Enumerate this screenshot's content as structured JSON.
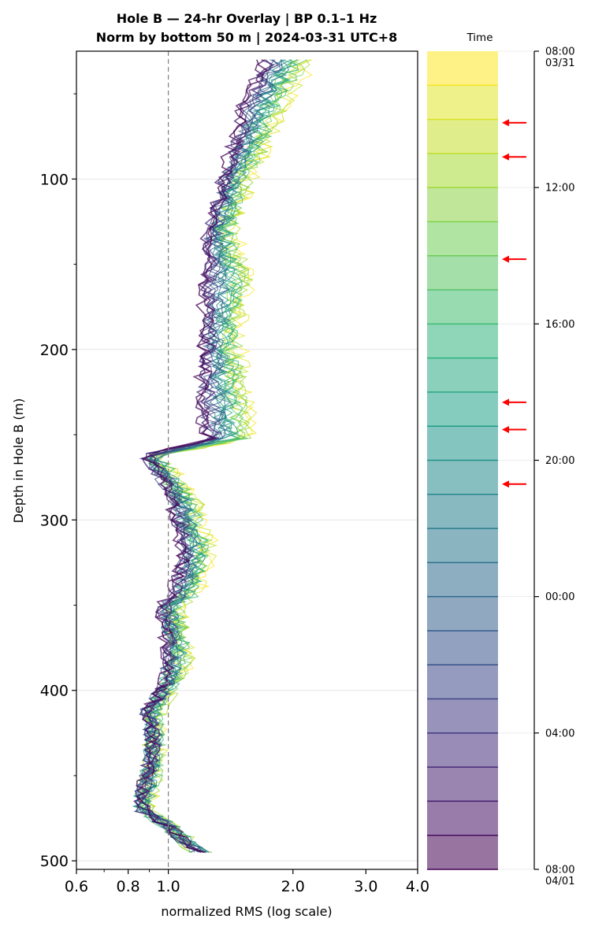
{
  "chart_data": {
    "type": "line",
    "title_line1": "Hole B — 24-hr Overlay  |  BP 0.1–1 Hz",
    "title_line2": "Norm by bottom 50 m  |  2024-03-31 UTC+8",
    "xlabel": "normalized RMS  (log scale)",
    "ylabel": "Depth in Hole B (m)",
    "x_scale": "log",
    "xlim": [
      0.6,
      4.0
    ],
    "ylim": [
      505,
      25
    ],
    "x_ticks": [
      0.6,
      0.8,
      1.0,
      2.0,
      3.0,
      4.0
    ],
    "x_tick_labels": [
      "0.6",
      "0.8",
      "1.0",
      "2.0",
      "3.0",
      "4.0"
    ],
    "y_ticks": [
      100,
      200,
      300,
      400,
      500
    ],
    "y_tick_labels": [
      "100",
      "200",
      "300",
      "400",
      "500"
    ],
    "reference_line_x": 1.0,
    "grid": "horizontal",
    "depth_knots": [
      30,
      60,
      100,
      130,
      160,
      190,
      220,
      245,
      252,
      262,
      268,
      290,
      320,
      345,
      350,
      380,
      400,
      412,
      430,
      450,
      465,
      470,
      480,
      490,
      495
    ],
    "profile_early": [
      2.15,
      1.85,
      1.55,
      1.4,
      1.55,
      1.45,
      1.5,
      1.55,
      1.55,
      0.92,
      0.98,
      1.15,
      1.25,
      1.15,
      1.05,
      1.1,
      1.0,
      0.93,
      0.93,
      0.92,
      0.88,
      0.86,
      1.02,
      1.12,
      1.2
    ],
    "profile_late": [
      1.7,
      1.5,
      1.35,
      1.25,
      1.22,
      1.22,
      1.2,
      1.2,
      1.25,
      0.88,
      0.92,
      1.02,
      1.08,
      1.02,
      0.96,
      1.0,
      0.96,
      0.88,
      0.92,
      0.88,
      0.86,
      0.86,
      1.0,
      1.1,
      1.18
    ],
    "series_count": 24,
    "colorbar": {
      "label": "Time",
      "ticks": [
        {
          "pos": 0,
          "label": "08:00",
          "sub": "03/31"
        },
        {
          "pos": 4,
          "label": "12:00"
        },
        {
          "pos": 8,
          "label": "16:00"
        },
        {
          "pos": 12,
          "label": "20:00"
        },
        {
          "pos": 16,
          "label": "00:00"
        },
        {
          "pos": 20,
          "label": "04:00"
        },
        {
          "pos": 24,
          "label": "08:00",
          "sub": "04/01"
        }
      ],
      "flagged_hours": [
        2.1,
        3.1,
        6.1,
        10.3,
        11.1,
        12.7
      ]
    },
    "colors": {
      "reference_line": "#808080",
      "arrow": "#ff0000",
      "grid": "#e6e6e6"
    }
  }
}
